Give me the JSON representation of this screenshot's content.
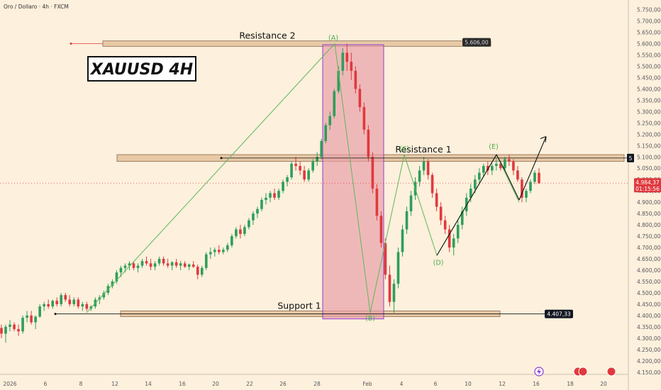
{
  "header": {
    "symbol_title": "Oro / Dollaro · 4h · FXCM"
  },
  "chart_data": {
    "type": "candlestick",
    "title": "XAUUSD 4H",
    "y_axis": {
      "range": [
        4140,
        5780
      ],
      "ticks": [
        "5.750,00",
        "5.700,00",
        "5.650,00",
        "5.600,00",
        "5.550,00",
        "5.500,00",
        "5.450,00",
        "5.400,00",
        "5.350,00",
        "5.300,00",
        "5.250,00",
        "5.200,00",
        "5.150,00",
        "5.100,00",
        "5.050,00",
        "5.000,00",
        "4.950,00",
        "4.900,00",
        "4.850,00",
        "4.800,00",
        "4.750,00",
        "4.700,00",
        "4.650,00",
        "4.600,00",
        "4.550,00",
        "4.500,00",
        "4.450,00",
        "4.400,00",
        "4.350,00",
        "4.300,00",
        "4.250,00",
        "4.200,00",
        "4.150,00"
      ]
    },
    "x_axis": {
      "ticks": [
        "2026",
        "6",
        "8",
        "12",
        "14",
        "16",
        "20",
        "22",
        "26",
        "28",
        "Feb",
        "4",
        "6",
        "10",
        "12",
        "16",
        "18",
        "20"
      ]
    },
    "current_price": {
      "value": 4984.37,
      "label": "4.984,37",
      "countdown": "01:15:56"
    },
    "zones": [
      {
        "label": "Resistance 2",
        "price_low": 5588,
        "price_high": 5612,
        "tag": "5.606,00"
      },
      {
        "label": "Resistance 1",
        "price_low": 5080,
        "price_high": 5110,
        "tag": "5"
      },
      {
        "label": "Support 1",
        "price_low": 4395,
        "price_high": 4420,
        "tag": "4.407,33"
      }
    ],
    "wave_points": [
      {
        "label": "(A)",
        "price": 5600
      },
      {
        "label": "(B)",
        "price": 4412
      },
      {
        "label": "(C)",
        "price": 5110
      },
      {
        "label": "(D)",
        "price": 4665
      },
      {
        "label": "(E)",
        "price": 5110
      }
    ],
    "series": [
      {
        "name": "",
        "ohlc": [
          [
            4345,
            4360,
            4300,
            4320
          ],
          [
            4320,
            4360,
            4280,
            4350
          ],
          [
            4350,
            4380,
            4330,
            4360
          ],
          [
            4360,
            4370,
            4330,
            4340
          ],
          [
            4340,
            4360,
            4310,
            4330
          ],
          [
            4330,
            4400,
            4320,
            4390
          ],
          [
            4390,
            4420,
            4370,
            4400
          ],
          [
            4400,
            4420,
            4360,
            4370
          ],
          [
            4370,
            4400,
            4340,
            4395
          ],
          [
            4395,
            4450,
            4390,
            4440
          ],
          [
            4440,
            4460,
            4420,
            4450
          ],
          [
            4450,
            4470,
            4430,
            4440
          ],
          [
            4440,
            4470,
            4430,
            4465
          ],
          [
            4465,
            4480,
            4440,
            4450
          ],
          [
            4450,
            4500,
            4440,
            4490
          ],
          [
            4490,
            4500,
            4460,
            4470
          ],
          [
            4470,
            4490,
            4440,
            4450
          ],
          [
            4450,
            4480,
            4440,
            4470
          ],
          [
            4470,
            4480,
            4430,
            4440
          ],
          [
            4440,
            4460,
            4420,
            4450
          ],
          [
            4450,
            4460,
            4420,
            4430
          ],
          [
            4430,
            4445,
            4420,
            4440
          ],
          [
            4440,
            4480,
            4430,
            4470
          ],
          [
            4470,
            4490,
            4450,
            4480
          ],
          [
            4480,
            4510,
            4470,
            4500
          ],
          [
            4500,
            4540,
            4490,
            4530
          ],
          [
            4530,
            4560,
            4520,
            4550
          ],
          [
            4550,
            4600,
            4540,
            4590
          ],
          [
            4590,
            4620,
            4570,
            4610
          ],
          [
            4610,
            4630,
            4590,
            4620
          ],
          [
            4620,
            4640,
            4600,
            4630
          ],
          [
            4630,
            4640,
            4600,
            4610
          ],
          [
            4610,
            4630,
            4590,
            4620
          ],
          [
            4620,
            4650,
            4610,
            4640
          ],
          [
            4640,
            4660,
            4620,
            4630
          ],
          [
            4630,
            4650,
            4600,
            4615
          ],
          [
            4615,
            4640,
            4600,
            4630
          ],
          [
            4630,
            4660,
            4620,
            4650
          ],
          [
            4650,
            4660,
            4620,
            4630
          ],
          [
            4630,
            4650,
            4610,
            4620
          ],
          [
            4620,
            4640,
            4600,
            4635
          ],
          [
            4635,
            4650,
            4610,
            4620
          ],
          [
            4620,
            4640,
            4600,
            4630
          ],
          [
            4630,
            4640,
            4610,
            4615
          ],
          [
            4615,
            4630,
            4600,
            4625
          ],
          [
            4625,
            4640,
            4610,
            4615
          ],
          [
            4615,
            4625,
            4560,
            4580
          ],
          [
            4580,
            4620,
            4570,
            4610
          ],
          [
            4610,
            4680,
            4600,
            4670
          ],
          [
            4670,
            4700,
            4650,
            4680
          ],
          [
            4680,
            4700,
            4660,
            4690
          ],
          [
            4690,
            4710,
            4670,
            4680
          ],
          [
            4680,
            4700,
            4670,
            4690
          ],
          [
            4690,
            4720,
            4680,
            4710
          ],
          [
            4710,
            4760,
            4700,
            4750
          ],
          [
            4750,
            4790,
            4740,
            4780
          ],
          [
            4780,
            4800,
            4740,
            4760
          ],
          [
            4760,
            4800,
            4750,
            4790
          ],
          [
            4790,
            4830,
            4780,
            4820
          ],
          [
            4820,
            4860,
            4800,
            4850
          ],
          [
            4850,
            4880,
            4830,
            4870
          ],
          [
            4870,
            4920,
            4860,
            4910
          ],
          [
            4910,
            4940,
            4890,
            4920
          ],
          [
            4920,
            4950,
            4900,
            4940
          ],
          [
            4940,
            4960,
            4910,
            4920
          ],
          [
            4920,
            4960,
            4910,
            4950
          ],
          [
            4950,
            5000,
            4940,
            4990
          ],
          [
            4990,
            5020,
            4970,
            5010
          ],
          [
            5010,
            5080,
            5000,
            5070
          ],
          [
            5070,
            5100,
            5040,
            5060
          ],
          [
            5060,
            5080,
            5020,
            5040
          ],
          [
            5040,
            5060,
            4990,
            5000
          ],
          [
            5000,
            5050,
            4990,
            5040
          ],
          [
            5040,
            5090,
            5030,
            5080
          ],
          [
            5080,
            5120,
            5060,
            5100
          ],
          [
            5100,
            5180,
            5090,
            5170
          ],
          [
            5170,
            5250,
            5160,
            5240
          ],
          [
            5240,
            5300,
            5220,
            5280
          ],
          [
            5280,
            5400,
            5270,
            5390
          ],
          [
            5390,
            5500,
            5380,
            5480
          ],
          [
            5480,
            5580,
            5460,
            5560
          ],
          [
            5560,
            5600,
            5480,
            5520
          ],
          [
            5520,
            5560,
            5440,
            5480
          ],
          [
            5480,
            5500,
            5380,
            5400
          ],
          [
            5400,
            5420,
            5300,
            5320
          ],
          [
            5320,
            5340,
            5200,
            5220
          ],
          [
            5220,
            5240,
            5080,
            5100
          ],
          [
            5100,
            5120,
            4940,
            4960
          ],
          [
            4960,
            4980,
            4820,
            4840
          ],
          [
            4840,
            4860,
            4700,
            4720
          ],
          [
            4720,
            4740,
            4560,
            4580
          ],
          [
            4580,
            4620,
            4440,
            4460
          ],
          [
            4460,
            4560,
            4412,
            4540
          ],
          [
            4540,
            4700,
            4520,
            4680
          ],
          [
            4680,
            4800,
            4660,
            4780
          ],
          [
            4780,
            4880,
            4760,
            4860
          ],
          [
            4860,
            4950,
            4840,
            4930
          ],
          [
            4930,
            5010,
            4910,
            4990
          ],
          [
            4990,
            5060,
            4970,
            5040
          ],
          [
            5040,
            5100,
            5020,
            5080
          ],
          [
            5080,
            5090,
            5000,
            5020
          ],
          [
            5020,
            5030,
            4920,
            4940
          ],
          [
            4940,
            4960,
            4860,
            4880
          ],
          [
            4880,
            4900,
            4800,
            4820
          ],
          [
            4820,
            4840,
            4760,
            4780
          ],
          [
            4780,
            4800,
            4680,
            4700
          ],
          [
            4700,
            4760,
            4665,
            4740
          ],
          [
            4740,
            4820,
            4720,
            4800
          ],
          [
            4800,
            4880,
            4780,
            4860
          ],
          [
            4860,
            4940,
            4840,
            4920
          ],
          [
            4920,
            4980,
            4900,
            4960
          ],
          [
            4960,
            5020,
            4940,
            5000
          ],
          [
            5000,
            5050,
            4980,
            5030
          ],
          [
            5030,
            5070,
            5010,
            5060
          ],
          [
            5060,
            5080,
            5020,
            5040
          ],
          [
            5040,
            5070,
            5020,
            5060
          ],
          [
            5060,
            5090,
            5040,
            5070
          ],
          [
            5070,
            5080,
            5040,
            5050
          ],
          [
            5050,
            5100,
            5040,
            5090
          ],
          [
            5090,
            5110,
            5060,
            5080
          ],
          [
            5080,
            5090,
            5020,
            5040
          ],
          [
            5040,
            5060,
            4990,
            5000
          ],
          [
            5000,
            5010,
            4900,
            4920
          ],
          [
            4920,
            4960,
            4900,
            4950
          ],
          [
            4950,
            5000,
            4940,
            4990
          ],
          [
            4990,
            5040,
            4980,
            5030
          ],
          [
            5030,
            5050,
            4980,
            4984
          ]
        ]
      }
    ],
    "grid": false,
    "legend": "none"
  },
  "colors": {
    "background": "#fdf0dc",
    "up": "#2e9e5b",
    "down": "#e0393e",
    "zone_fill": "#e8c9a6",
    "zone_stroke": "#8a6a50",
    "highlight_fill": "#e8a0a8",
    "highlight_stroke": "#8e3fd0",
    "wave_line": "#5cb85c",
    "path_line": "#111111",
    "price_tag": "#e0393e",
    "dark_tag": "#131722"
  }
}
